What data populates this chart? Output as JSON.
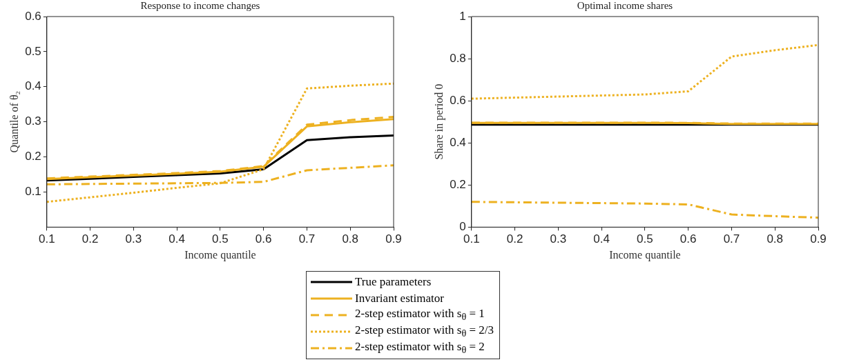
{
  "chart_data": [
    {
      "type": "line",
      "title": "Response to income changes",
      "xlabel": "Income quantile",
      "ylabel": "Quantile of θ₂",
      "x": [
        0.1,
        0.2,
        0.3,
        0.4,
        0.5,
        0.6,
        0.7,
        0.8,
        0.9
      ],
      "xlim": [
        0.1,
        0.9
      ],
      "xticks": [
        0.1,
        0.2,
        0.3,
        0.4,
        0.5,
        0.6,
        0.7,
        0.8,
        0.9
      ],
      "ylim": [
        0,
        0.6
      ],
      "yticks": [
        0.1,
        0.2,
        0.3,
        0.4,
        0.5,
        0.6
      ],
      "grid": false,
      "legend": "bottom",
      "series": [
        {
          "name": "True parameters",
          "color": "#000000",
          "line_style": "solid",
          "values": [
            0.133,
            0.138,
            0.143,
            0.148,
            0.153,
            0.165,
            0.248,
            0.256,
            0.261
          ]
        },
        {
          "name": "Invariant estimator",
          "color": "#edb120",
          "line_style": "solid",
          "values": [
            0.137,
            0.142,
            0.147,
            0.152,
            0.158,
            0.172,
            0.287,
            0.299,
            0.308
          ]
        },
        {
          "name": "2-step estimator with s$_{θ}$ = 1",
          "color": "#edb120",
          "line_style": "dashed",
          "values": [
            0.139,
            0.144,
            0.149,
            0.154,
            0.16,
            0.174,
            0.292,
            0.305,
            0.314
          ]
        },
        {
          "name": "2-step estimator with s$_{θ}$ = 2/3",
          "color": "#edb120",
          "line_style": "dotted",
          "values": [
            0.072,
            0.085,
            0.098,
            0.112,
            0.125,
            0.165,
            0.395,
            0.403,
            0.409
          ]
        },
        {
          "name": "2-step estimator with s$_{θ}$ = 2",
          "color": "#edb120",
          "line_style": "dashdot",
          "values": [
            0.122,
            0.123,
            0.124,
            0.125,
            0.126,
            0.129,
            0.162,
            0.169,
            0.176
          ]
        }
      ]
    },
    {
      "type": "line",
      "title": "Optimal income shares",
      "xlabel": "Income quantile",
      "ylabel": "Share in period 0",
      "x": [
        0.1,
        0.2,
        0.3,
        0.4,
        0.5,
        0.6,
        0.7,
        0.8,
        0.9
      ],
      "xlim": [
        0.1,
        0.9
      ],
      "xticks": [
        0.1,
        0.2,
        0.3,
        0.4,
        0.5,
        0.6,
        0.7,
        0.8,
        0.9
      ],
      "ylim": [
        0,
        1
      ],
      "yticks": [
        0,
        0.2,
        0.4,
        0.6,
        0.8,
        1
      ],
      "grid": false,
      "series": [
        {
          "color": "#000000",
          "line_style": "solid",
          "values": [
            0.487,
            0.487,
            0.487,
            0.487,
            0.487,
            0.487,
            0.487,
            0.487,
            0.487
          ]
        },
        {
          "color": "#edb120",
          "line_style": "solid",
          "values": [
            0.495,
            0.495,
            0.495,
            0.495,
            0.495,
            0.494,
            0.49,
            0.49,
            0.49
          ]
        },
        {
          "color": "#edb120",
          "line_style": "dashed",
          "values": [
            0.496,
            0.496,
            0.496,
            0.496,
            0.496,
            0.495,
            0.492,
            0.492,
            0.492
          ]
        },
        {
          "color": "#edb120",
          "line_style": "dotted",
          "values": [
            0.61,
            0.615,
            0.62,
            0.625,
            0.63,
            0.645,
            0.81,
            0.84,
            0.865
          ]
        },
        {
          "color": "#edb120",
          "line_style": "dashdot",
          "values": [
            0.12,
            0.118,
            0.116,
            0.114,
            0.112,
            0.108,
            0.06,
            0.052,
            0.045
          ]
        }
      ]
    }
  ]
}
